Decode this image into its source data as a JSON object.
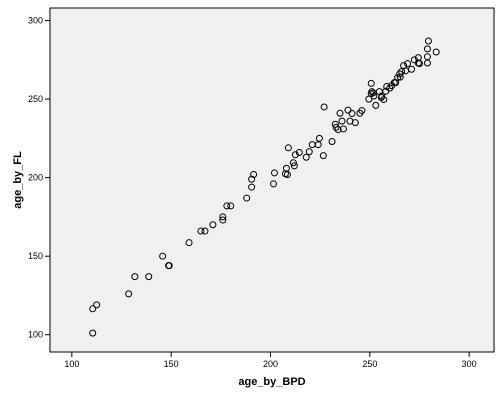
{
  "chart_data": {
    "type": "scatter",
    "x_label": "age_by_BPD",
    "y_label": "age_by_FL",
    "x": [
      110.5,
      110.5,
      112.5,
      128.6,
      131.7,
      138.7,
      145.7,
      148.7,
      149,
      159,
      165,
      167,
      171,
      176,
      176,
      178,
      180,
      188,
      190.5,
      190.5,
      191.5,
      201.5,
      202,
      207.5,
      208,
      208.5,
      209,
      211.5,
      212,
      212.5,
      214.5,
      218,
      219.5,
      221,
      224,
      224.6,
      226.6,
      227,
      231,
      232.6,
      233,
      234,
      235,
      236,
      236.7,
      239,
      240,
      241,
      242.7,
      245,
      246,
      249.5,
      250.7,
      250.7,
      251,
      251.7,
      252,
      253,
      254.8,
      255.8,
      256,
      257,
      258,
      258.5,
      260,
      261,
      262.3,
      263,
      264,
      265,
      265.3,
      266,
      267,
      268,
      269,
      271,
      272.4,
      274.4,
      275,
      274.4,
      279,
      279,
      279,
      279.5,
      283.4
    ],
    "y": [
      101,
      116.5,
      119,
      126,
      137,
      137,
      150,
      144,
      144,
      158.6,
      166,
      166,
      170,
      175,
      173,
      182,
      182,
      187,
      194,
      199,
      202,
      196,
      203,
      202.5,
      206,
      202,
      219,
      209.5,
      207.5,
      214.6,
      216,
      213,
      216.5,
      221,
      221,
      225,
      214,
      245,
      223,
      234,
      232,
      230.6,
      241,
      236,
      231,
      243,
      236,
      240.8,
      235,
      241,
      242.7,
      250,
      253.5,
      260,
      254.8,
      254,
      252,
      246,
      254.8,
      251,
      252,
      249.7,
      255,
      258,
      257,
      258.6,
      260.5,
      260.5,
      263.7,
      266,
      264,
      267.5,
      271.3,
      268,
      272.6,
      269,
      275,
      273,
      272.6,
      276.4,
      273,
      277,
      282,
      287,
      280
    ],
    "color": "#000000",
    "xlim": [
      89,
      312.5
    ],
    "ylim": [
      89,
      308
    ],
    "xticks": [
      100,
      150,
      200,
      250,
      300
    ],
    "yticks": [
      100,
      150,
      200,
      250,
      300
    ]
  }
}
